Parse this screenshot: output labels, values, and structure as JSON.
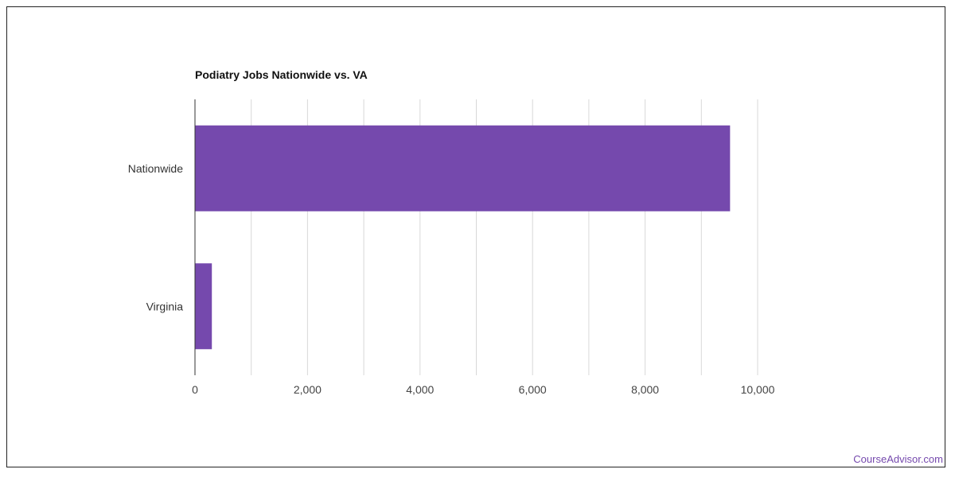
{
  "chart_data": {
    "type": "bar",
    "orientation": "horizontal",
    "title": "Podiatry Jobs Nationwide vs. VA",
    "categories": [
      "Nationwide",
      "Virginia"
    ],
    "values": [
      9510,
      300
    ],
    "xlim": [
      0,
      11000
    ],
    "xticks": [
      0,
      2000,
      4000,
      6000,
      8000,
      10000
    ],
    "xtick_labels": [
      "0",
      "2,000",
      "4,000",
      "6,000",
      "8,000",
      "10,000"
    ],
    "grid": "vertical",
    "xlabel": "",
    "ylabel": "",
    "bar_color": "#7549ad"
  },
  "footer": {
    "source": "CourseAdvisor.com",
    "color": "#7549ad"
  }
}
